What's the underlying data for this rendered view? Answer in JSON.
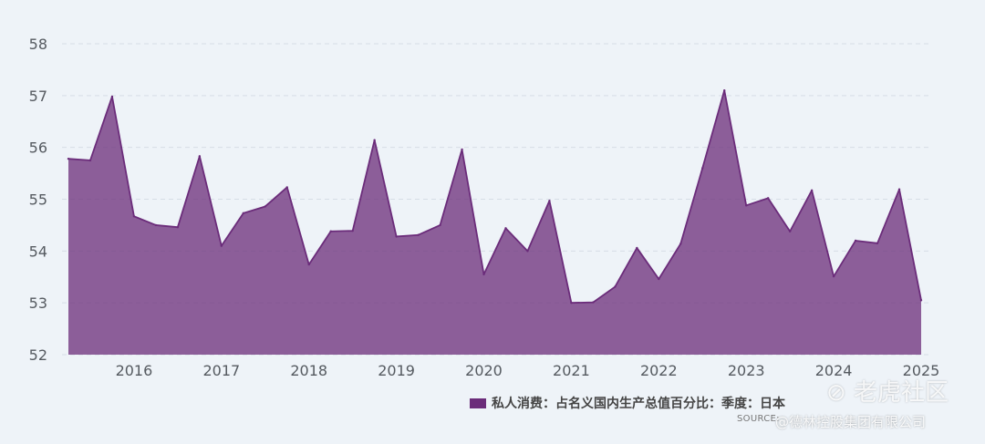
{
  "chart_data": {
    "type": "area",
    "title": "",
    "xlabel": "",
    "ylabel": "",
    "ylim": [
      52,
      58
    ],
    "xlim": [
      2015.25,
      2025.0
    ],
    "y_ticks": [
      "52",
      "53",
      "54",
      "55",
      "56",
      "57",
      "58"
    ],
    "x_ticks": [
      "2016",
      "2017",
      "2018",
      "2019",
      "2020",
      "2021",
      "2022",
      "2023",
      "2024",
      "2025"
    ],
    "grid": true,
    "legend_position": "bottom-right",
    "series": [
      {
        "name": "私人消费：占名义国内生产总值百分比：季度：日本",
        "color": "#6b2c7a",
        "x": [
          2015.25,
          2015.5,
          2015.75,
          2016.0,
          2016.25,
          2016.5,
          2016.75,
          2017.0,
          2017.25,
          2017.5,
          2017.75,
          2018.0,
          2018.25,
          2018.5,
          2018.75,
          2019.0,
          2019.25,
          2019.5,
          2019.75,
          2020.0,
          2020.25,
          2020.5,
          2020.75,
          2021.0,
          2021.25,
          2021.5,
          2021.75,
          2022.0,
          2022.25,
          2022.5,
          2022.75,
          2023.0,
          2023.25,
          2023.5,
          2023.75,
          2024.0,
          2024.25,
          2024.5,
          2024.75,
          2025.0
        ],
        "values": [
          55.78,
          55.75,
          56.98,
          54.67,
          54.5,
          54.46,
          55.83,
          54.1,
          54.73,
          54.86,
          55.23,
          53.74,
          54.38,
          54.39,
          56.14,
          54.28,
          54.31,
          54.5,
          55.96,
          53.55,
          54.44,
          54.0,
          54.97,
          53.0,
          53.01,
          53.31,
          54.06,
          53.46,
          54.14,
          55.6,
          57.1,
          54.88,
          55.02,
          54.38,
          55.17,
          53.51,
          54.2,
          54.15,
          55.19,
          53.05
        ]
      }
    ]
  },
  "legend": {
    "label": "私人消费：占名义国内生产总值百分比：季度：日本"
  },
  "source_text": "SOURCE: ",
  "watermark": {
    "logo": "⊘ 老虎社区",
    "text": "@德林控股集团有限公司"
  }
}
